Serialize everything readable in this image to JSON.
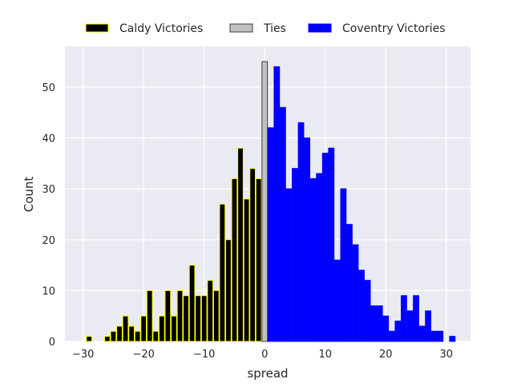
{
  "chart_data": {
    "type": "bar",
    "xlabel": "spread",
    "ylabel": "Count",
    "xlim": [
      -33,
      34
    ],
    "ylim": [
      0,
      58
    ],
    "xticks": [
      -30,
      -20,
      -10,
      0,
      10,
      20,
      30
    ],
    "yticks": [
      0,
      10,
      20,
      30,
      40,
      50
    ],
    "grid": true,
    "legend_placement": "top-center",
    "series": [
      {
        "name": "Caldy Victories",
        "color": "#000000",
        "edge": "#ffff00",
        "x": [
          -29,
          -26,
          -25,
          -24,
          -23,
          -22,
          -21,
          -20,
          -19,
          -18,
          -17,
          -16,
          -15,
          -14,
          -13,
          -12,
          -11,
          -10,
          -9,
          -8,
          -7,
          -6,
          -5,
          -4,
          -3,
          -2,
          -1
        ],
        "values": [
          1,
          1,
          2,
          3,
          5,
          3,
          2,
          5,
          10,
          2,
          5,
          10,
          5,
          10,
          9,
          15,
          9,
          9,
          12,
          10,
          27,
          20,
          32,
          38,
          28,
          34,
          32
        ]
      },
      {
        "name": "Ties",
        "color": "#c0c0c0",
        "edge": "#404040",
        "x": [
          0
        ],
        "values": [
          55
        ]
      },
      {
        "name": "Coventry Victories",
        "color": "#0000ff",
        "edge": "#0000ff",
        "x": [
          1,
          2,
          3,
          4,
          5,
          6,
          7,
          8,
          9,
          10,
          11,
          12,
          13,
          14,
          15,
          16,
          17,
          18,
          19,
          20,
          21,
          22,
          23,
          24,
          25,
          26,
          27,
          28,
          29,
          31
        ],
        "values": [
          42,
          54,
          46,
          30,
          34,
          43,
          40,
          32,
          33,
          37,
          38,
          16,
          30,
          23,
          19,
          14,
          12,
          7,
          7,
          5,
          2,
          4,
          9,
          6,
          9,
          3,
          6,
          2,
          2,
          1
        ]
      }
    ]
  }
}
